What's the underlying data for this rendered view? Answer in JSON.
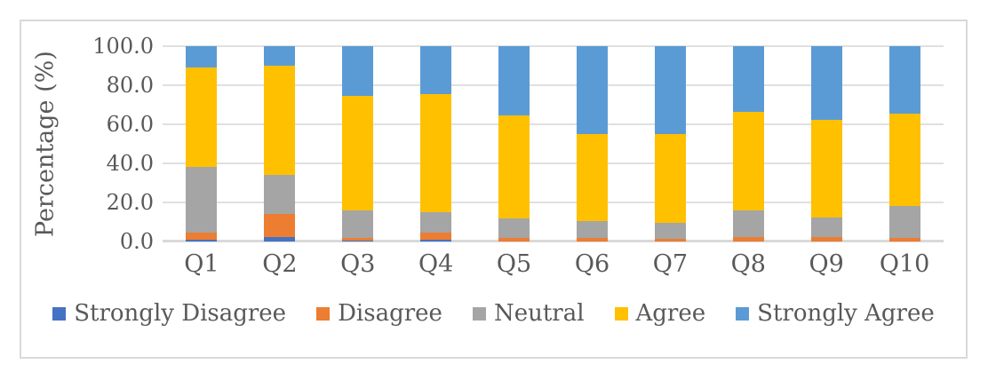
{
  "chart_data": {
    "type": "bar",
    "stacked": true,
    "stack_mode": "percent",
    "title": "",
    "xlabel": "",
    "ylabel": "Percentage (%)",
    "ylim": [
      0,
      100
    ],
    "ytick_step": 20,
    "ytick_labels": [
      "0.0",
      "20.0",
      "40.0",
      "60.0",
      "80.0",
      "100.0"
    ],
    "grid": true,
    "legend_position": "bottom",
    "categories": [
      "Q1",
      "Q2",
      "Q3",
      "Q4",
      "Q5",
      "Q6",
      "Q7",
      "Q8",
      "Q9",
      "Q10"
    ],
    "series": [
      {
        "name": "Strongly Disagree",
        "color": "#4472C4",
        "values": [
          1.0,
          2.5,
          0.5,
          1.0,
          0.0,
          0.0,
          0.0,
          0.0,
          0.0,
          0.0
        ]
      },
      {
        "name": "Disagree",
        "color": "#ED7D31",
        "values": [
          3.5,
          11.5,
          1.5,
          3.5,
          2.0,
          2.0,
          1.5,
          2.5,
          2.5,
          2.0
        ]
      },
      {
        "name": "Neutral",
        "color": "#A5A5A5",
        "values": [
          33.5,
          20.0,
          14.0,
          10.5,
          10.0,
          8.5,
          8.0,
          13.5,
          10.0,
          16.0
        ]
      },
      {
        "name": "Agree",
        "color": "#FFC000",
        "values": [
          51.0,
          56.0,
          58.5,
          60.5,
          52.5,
          44.5,
          45.5,
          50.5,
          50.0,
          47.5
        ]
      },
      {
        "name": "Strongly Agree",
        "color": "#5B9BD5",
        "values": [
          11.0,
          10.0,
          25.5,
          24.5,
          35.5,
          45.0,
          45.0,
          33.5,
          37.5,
          34.5
        ]
      }
    ]
  },
  "colors": {
    "text": "#595959",
    "gridline": "#E0E0E0",
    "axis_line": "#D9D9D9",
    "chart_border": "#D9D9D9",
    "background": "#FFFFFF"
  }
}
